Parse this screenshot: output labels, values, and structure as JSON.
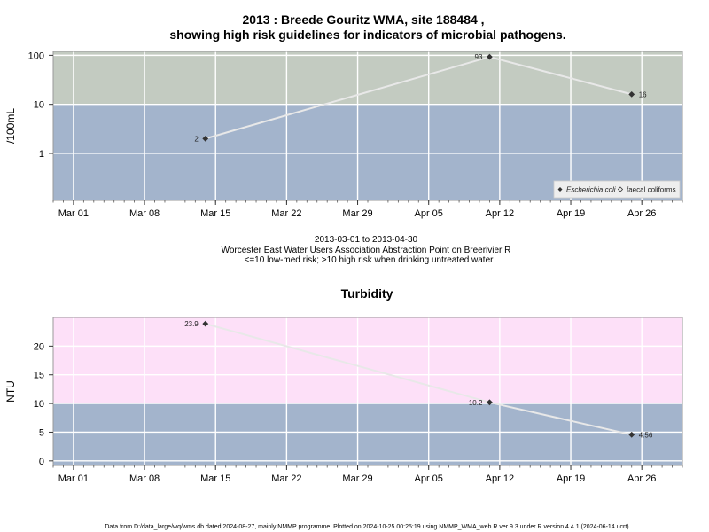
{
  "colors": {
    "low_band": "#a3b4cc",
    "high_band_ecoli": "#c3cbc1",
    "high_band_turbidity": "#fde0f8",
    "line": "#e8e8e8",
    "marker": "#333333"
  },
  "header": {
    "title_line1": "2013 : Breede Gouritz WMA, site 188484 ,",
    "title_line2": "showing high risk guidelines for indicators of microbial pathogens."
  },
  "subtitle": {
    "line1": "2013-03-01 to 2013-04-30",
    "line2": "Worcester East Water Users Association Abstraction Point on Breerivier R",
    "line3": "<=10 low-med risk; >10 high risk when drinking untreated water"
  },
  "footer": {
    "text": "Data from D:/data_large/wq/wms.db dated 2024-08-27, mainly NMMP programme. Plotted on 2024-10-25 00:25:19 using NMMP_WMA_web.R ver 9.3 under R version 4.4.1 (2024-06-14 ucrt)"
  },
  "chart_data": [
    {
      "type": "line",
      "title": "",
      "ylabel": "/100mL",
      "xlabel": "",
      "yscale": "log",
      "xlim": [
        "2013-02-27",
        "2013-04-30"
      ],
      "ylim": [
        0.11,
        120
      ],
      "x_ticks": [
        "2013-03-01",
        "2013-03-08",
        "2013-03-15",
        "2013-03-22",
        "2013-03-29",
        "2013-04-05",
        "2013-04-12",
        "2013-04-19",
        "2013-04-26"
      ],
      "x_tick_labels": [
        "Mar 01",
        "Mar 08",
        "Mar 15",
        "Mar 22",
        "Mar 29",
        "Apr 05",
        "Apr 12",
        "Apr 19",
        "Apr 26"
      ],
      "y_ticks": [
        1,
        10,
        100
      ],
      "y_tick_labels": [
        "1",
        "10",
        "100"
      ],
      "threshold": 10,
      "grid": true,
      "legend_position": "bottom-right",
      "legend": [
        {
          "label": "Escherichia coli",
          "marker": "filled-diamond"
        },
        {
          "label": "faecal coliforms",
          "marker": "open-diamond"
        }
      ],
      "series": [
        {
          "name": "Escherichia coli",
          "points": [
            {
              "x": "2013-03-14",
              "y": 2,
              "label": "2"
            },
            {
              "x": "2013-04-11",
              "y": 93,
              "label": "93"
            },
            {
              "x": "2013-04-25",
              "y": 16,
              "label": "16"
            }
          ]
        }
      ]
    },
    {
      "type": "line",
      "title": "Turbidity",
      "ylabel": "NTU",
      "xlabel": "",
      "yscale": "linear",
      "xlim": [
        "2013-02-27",
        "2013-04-30"
      ],
      "ylim": [
        -0.8,
        25
      ],
      "x_ticks": [
        "2013-03-01",
        "2013-03-08",
        "2013-03-15",
        "2013-03-22",
        "2013-03-29",
        "2013-04-05",
        "2013-04-12",
        "2013-04-19",
        "2013-04-26"
      ],
      "x_tick_labels": [
        "Mar 01",
        "Mar 08",
        "Mar 15",
        "Mar 22",
        "Mar 29",
        "Apr 05",
        "Apr 12",
        "Apr 19",
        "Apr 26"
      ],
      "y_ticks": [
        0,
        5,
        10,
        15,
        20
      ],
      "y_tick_labels": [
        "0",
        "5",
        "10",
        "15",
        "20"
      ],
      "threshold": 10,
      "grid": true,
      "series": [
        {
          "name": "",
          "points": [
            {
              "x": "2013-03-14",
              "y": 23.9,
              "label": "23.9"
            },
            {
              "x": "2013-04-11",
              "y": 10.2,
              "label": "10.2"
            },
            {
              "x": "2013-04-25",
              "y": 4.56,
              "label": "4.56"
            }
          ]
        }
      ]
    }
  ]
}
